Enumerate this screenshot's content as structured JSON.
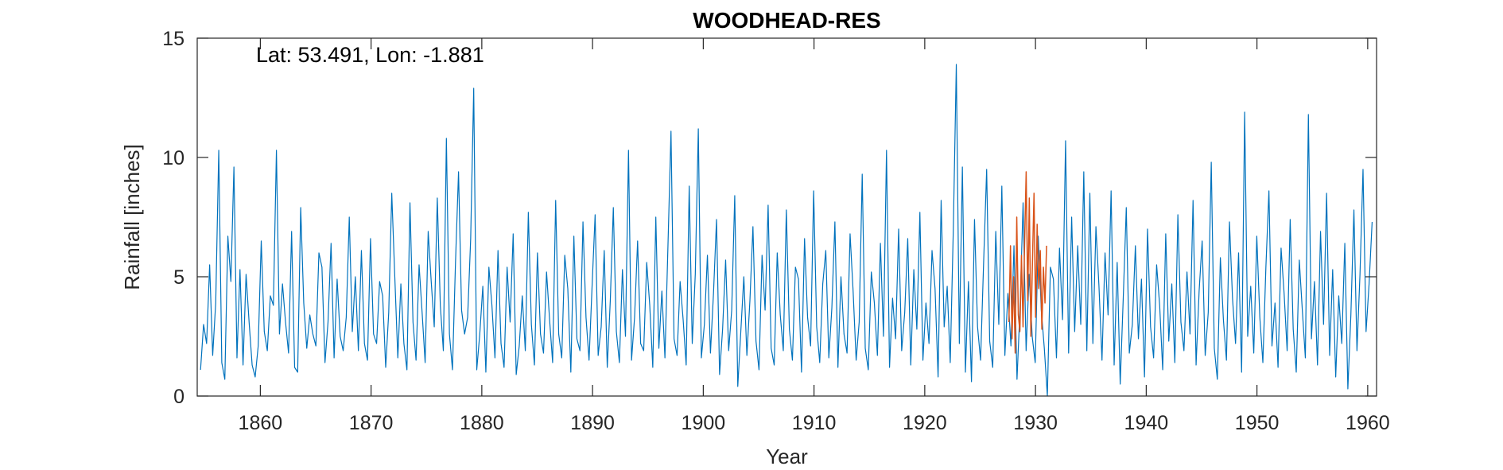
{
  "chart_data": {
    "type": "line",
    "title": "WOODHEAD-RES",
    "xlabel": "Year",
    "ylabel": "Rainfall [inches]",
    "annotation": "Lat: 53.491, Lon: -1.881",
    "xlim": [
      1854.3,
      1960.8
    ],
    "ylim": [
      0,
      15
    ],
    "xticks": [
      1860,
      1870,
      1880,
      1890,
      1900,
      1910,
      1920,
      1930,
      1940,
      1950,
      1960
    ],
    "yticks": [
      0,
      5,
      10,
      15
    ],
    "grid": false,
    "series": [
      {
        "color": "#0072BD",
        "sampling": "monthly",
        "x_start": 1854.6,
        "x_end": 1960.4,
        "values": [
          1.1,
          3.0,
          2.2,
          5.5,
          1.7,
          3.9,
          10.3,
          1.4,
          0.7,
          6.7,
          4.8,
          9.6,
          1.6,
          5.3,
          1.3,
          5.1,
          3.1,
          1.3,
          0.8,
          2.1,
          6.5,
          2.7,
          1.9,
          4.2,
          3.8,
          10.3,
          2.6,
          4.7,
          3.1,
          1.8,
          6.9,
          1.2,
          1.0,
          7.9,
          3.9,
          2.0,
          3.4,
          2.6,
          2.1,
          6.0,
          5.4,
          1.4,
          3.1,
          6.4,
          1.6,
          4.9,
          2.5,
          1.9,
          3.3,
          7.5,
          2.7,
          5.0,
          1.9,
          6.1,
          2.2,
          1.5,
          6.6,
          2.6,
          2.2,
          4.8,
          4.2,
          1.2,
          3.5,
          8.5,
          5.0,
          1.6,
          4.7,
          2.2,
          1.1,
          8.1,
          3.1,
          1.5,
          5.5,
          3.5,
          1.4,
          6.9,
          4.8,
          2.9,
          8.3,
          3.8,
          1.9,
          10.8,
          2.6,
          1.1,
          5.6,
          9.4,
          3.6,
          2.6,
          3.3,
          6.6,
          12.9,
          1.1,
          2.6,
          4.6,
          1.0,
          5.4,
          3.8,
          1.6,
          6.1,
          2.2,
          1.2,
          5.4,
          3.1,
          6.8,
          0.9,
          2.1,
          4.2,
          1.9,
          7.7,
          3.0,
          1.3,
          6.0,
          2.6,
          1.8,
          5.2,
          3.2,
          1.4,
          8.2,
          2.6,
          1.6,
          5.9,
          4.5,
          1.0,
          6.7,
          2.4,
          1.9,
          7.3,
          3.3,
          1.5,
          4.6,
          7.6,
          1.7,
          2.9,
          6.1,
          1.2,
          4.0,
          7.9,
          2.7,
          1.4,
          5.3,
          2.5,
          10.3,
          1.5,
          3.3,
          6.5,
          2.2,
          1.9,
          5.6,
          3.8,
          1.2,
          7.5,
          2.0,
          4.4,
          1.6,
          6.3,
          11.1,
          2.4,
          1.7,
          4.8,
          3.2,
          1.3,
          8.8,
          2.2,
          5.1,
          11.2,
          1.6,
          3.0,
          5.9,
          1.8,
          4.3,
          7.4,
          0.9,
          2.8,
          5.7,
          1.9,
          3.6,
          8.4,
          0.4,
          2.7,
          5.0,
          1.7,
          4.0,
          7.1,
          2.3,
          1.1,
          5.9,
          3.6,
          8.0,
          2.0,
          1.3,
          6.0,
          3.4,
          1.9,
          7.8,
          2.8,
          1.5,
          5.4,
          4.9,
          1.0,
          6.6,
          3.3,
          2.1,
          8.6,
          2.9,
          1.4,
          4.7,
          6.1,
          1.6,
          3.7,
          7.3,
          1.2,
          5.0,
          2.6,
          1.8,
          6.8,
          4.4,
          1.5,
          3.1,
          9.3,
          2.0,
          1.1,
          5.2,
          3.9,
          1.7,
          6.4,
          2.5,
          10.3,
          1.2,
          4.1,
          2.4,
          7.0,
          1.9,
          3.5,
          6.6,
          1.3,
          5.3,
          2.8,
          7.7,
          1.5,
          3.9,
          2.2,
          6.1,
          4.5,
          0.8,
          8.2,
          2.9,
          4.6,
          1.4,
          6.9,
          13.9,
          2.2,
          9.6,
          1.0,
          4.8,
          0.6,
          7.4,
          2.9,
          1.5,
          5.6,
          9.5,
          2.3,
          1.2,
          6.9,
          3.0,
          8.8,
          1.7,
          4.3,
          2.1,
          6.3,
          0.7,
          3.7,
          8.1,
          1.9,
          5.1,
          2.5,
          1.4,
          6.7,
          3.6,
          2.0,
          0.0,
          5.4,
          4.9,
          1.6,
          6.2,
          3.2,
          10.7,
          1.8,
          7.5,
          2.7,
          6.3,
          3.0,
          9.4,
          1.9,
          8.5,
          2.2,
          7.1,
          4.6,
          1.5,
          6.0,
          3.4,
          8.6,
          1.3,
          5.6,
          0.5,
          4.1,
          7.9,
          1.8,
          3.0,
          6.3,
          2.4,
          4.9,
          0.8,
          7.0,
          2.9,
          1.6,
          5.5,
          3.8,
          1.1,
          6.8,
          2.3,
          4.7,
          1.4,
          7.6,
          3.1,
          1.9,
          5.2,
          2.6,
          8.2,
          1.3,
          4.4,
          6.5,
          1.7,
          3.5,
          9.8,
          2.0,
          0.7,
          5.8,
          3.2,
          1.5,
          7.3,
          4.1,
          2.2,
          6.0,
          1.0,
          11.9,
          2.5,
          4.6,
          1.8,
          6.7,
          3.3,
          1.4,
          5.4,
          8.6,
          2.1,
          3.9,
          1.2,
          6.2,
          4.3,
          1.9,
          7.4,
          2.8,
          1.0,
          5.7,
          3.6,
          1.6,
          11.8,
          2.4,
          4.8,
          1.3,
          6.9,
          3.0,
          8.5,
          1.7,
          5.3,
          0.8,
          4.2,
          2.2,
          6.4,
          0.3,
          3.4,
          7.8,
          1.9,
          5.1,
          9.5,
          2.7,
          4.7,
          7.3
        ]
      },
      {
        "color": "#D95319",
        "name": "",
        "sampling": "monthly",
        "x_start": 1927.6,
        "x_end": 1931.0,
        "values": [
          3.1,
          6.3,
          2.4,
          5.0,
          1.8,
          7.5,
          3.4,
          2.7,
          5.9,
          2.9,
          6.4,
          9.4,
          4.0,
          8.3,
          2.5,
          5.6,
          8.5,
          3.3,
          7.2,
          4.5,
          6.1,
          2.8,
          5.4,
          3.9,
          6.3
        ]
      }
    ]
  }
}
